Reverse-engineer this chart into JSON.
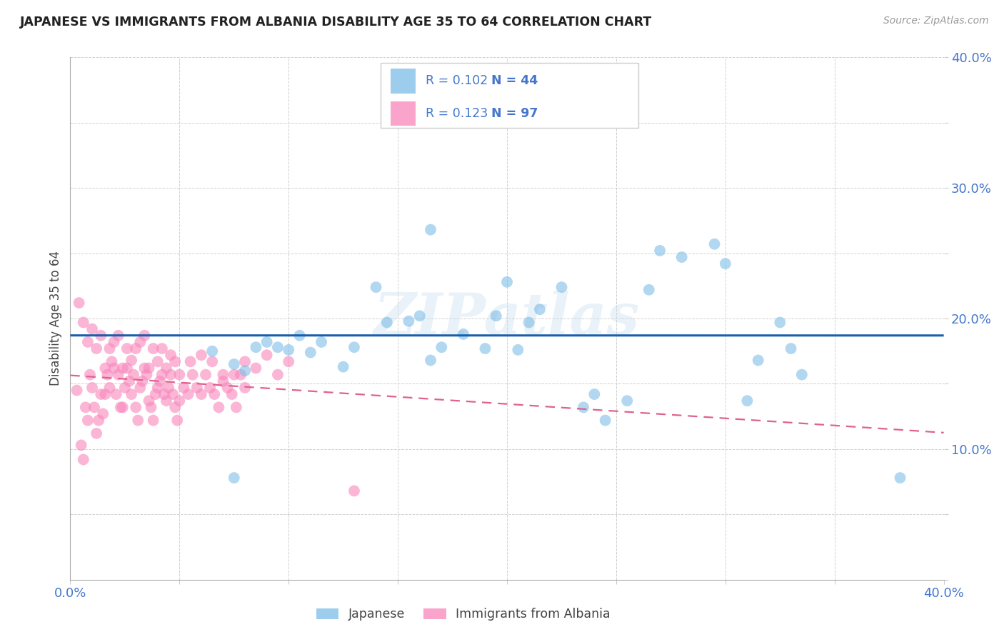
{
  "title": "JAPANESE VS IMMIGRANTS FROM ALBANIA DISABILITY AGE 35 TO 64 CORRELATION CHART",
  "source": "Source: ZipAtlas.com",
  "ylabel": "Disability Age 35 to 64",
  "xlim": [
    0.0,
    0.4
  ],
  "ylim": [
    0.0,
    0.4
  ],
  "legend_label1": "Japanese",
  "legend_label2": "Immigrants from Albania",
  "R1": "0.102",
  "N1": "44",
  "R2": "0.123",
  "N2": "97",
  "color_japanese": "#7dbde8",
  "color_albania": "#f986bc",
  "color_line_japanese": "#1a5faa",
  "color_line_albania": "#e06090",
  "watermark": "ZIPatlas",
  "japanese_x": [
    0.065,
    0.075,
    0.08,
    0.085,
    0.09,
    0.095,
    0.1,
    0.105,
    0.11,
    0.115,
    0.125,
    0.13,
    0.14,
    0.145,
    0.155,
    0.16,
    0.165,
    0.17,
    0.18,
    0.19,
    0.195,
    0.2,
    0.205,
    0.21,
    0.215,
    0.225,
    0.235,
    0.24,
    0.245,
    0.255,
    0.265,
    0.27,
    0.28,
    0.295,
    0.3,
    0.31,
    0.315,
    0.325,
    0.33,
    0.335,
    0.155,
    0.165,
    0.38,
    0.075
  ],
  "japanese_y": [
    0.175,
    0.165,
    0.16,
    0.178,
    0.182,
    0.178,
    0.176,
    0.187,
    0.174,
    0.182,
    0.163,
    0.178,
    0.224,
    0.197,
    0.198,
    0.202,
    0.168,
    0.178,
    0.188,
    0.177,
    0.202,
    0.228,
    0.176,
    0.197,
    0.207,
    0.224,
    0.132,
    0.142,
    0.122,
    0.137,
    0.222,
    0.252,
    0.247,
    0.257,
    0.242,
    0.137,
    0.168,
    0.197,
    0.177,
    0.157,
    0.352,
    0.268,
    0.078,
    0.078
  ],
  "albania_x": [
    0.003,
    0.005,
    0.006,
    0.007,
    0.008,
    0.009,
    0.01,
    0.011,
    0.012,
    0.013,
    0.014,
    0.015,
    0.016,
    0.017,
    0.018,
    0.019,
    0.02,
    0.021,
    0.022,
    0.023,
    0.024,
    0.025,
    0.026,
    0.027,
    0.028,
    0.029,
    0.03,
    0.031,
    0.032,
    0.033,
    0.034,
    0.035,
    0.036,
    0.037,
    0.038,
    0.039,
    0.04,
    0.041,
    0.042,
    0.043,
    0.044,
    0.045,
    0.046,
    0.047,
    0.048,
    0.049,
    0.05,
    0.052,
    0.054,
    0.056,
    0.058,
    0.06,
    0.062,
    0.064,
    0.066,
    0.068,
    0.07,
    0.072,
    0.074,
    0.076,
    0.078,
    0.08,
    0.004,
    0.006,
    0.008,
    0.01,
    0.012,
    0.014,
    0.016,
    0.018,
    0.02,
    0.022,
    0.024,
    0.026,
    0.028,
    0.03,
    0.032,
    0.034,
    0.036,
    0.038,
    0.04,
    0.042,
    0.044,
    0.046,
    0.048,
    0.05,
    0.055,
    0.06,
    0.065,
    0.07,
    0.075,
    0.08,
    0.085,
    0.09,
    0.095,
    0.1,
    0.13
  ],
  "albania_y": [
    0.145,
    0.103,
    0.092,
    0.132,
    0.122,
    0.157,
    0.147,
    0.132,
    0.112,
    0.122,
    0.142,
    0.127,
    0.142,
    0.157,
    0.147,
    0.167,
    0.162,
    0.142,
    0.157,
    0.132,
    0.132,
    0.147,
    0.162,
    0.152,
    0.142,
    0.157,
    0.132,
    0.122,
    0.147,
    0.152,
    0.162,
    0.157,
    0.137,
    0.132,
    0.122,
    0.142,
    0.147,
    0.152,
    0.157,
    0.142,
    0.137,
    0.147,
    0.157,
    0.142,
    0.132,
    0.122,
    0.137,
    0.147,
    0.142,
    0.157,
    0.147,
    0.142,
    0.157,
    0.147,
    0.142,
    0.132,
    0.157,
    0.147,
    0.142,
    0.132,
    0.157,
    0.147,
    0.212,
    0.197,
    0.182,
    0.192,
    0.177,
    0.187,
    0.162,
    0.177,
    0.182,
    0.187,
    0.162,
    0.177,
    0.168,
    0.177,
    0.182,
    0.187,
    0.162,
    0.177,
    0.167,
    0.177,
    0.162,
    0.172,
    0.167,
    0.157,
    0.167,
    0.172,
    0.167,
    0.152,
    0.157,
    0.167,
    0.162,
    0.172,
    0.157,
    0.167,
    0.068
  ]
}
